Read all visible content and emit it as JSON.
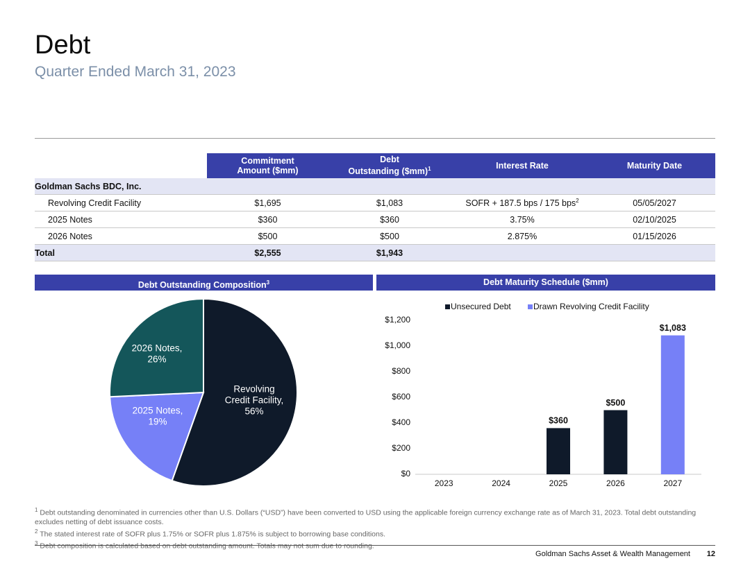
{
  "header": {
    "title": "Debt",
    "subtitle": "Quarter Ended March 31, 2023"
  },
  "table": {
    "columns": [
      {
        "line1": "Commitment",
        "line2": "Amount ($mm)",
        "sup": ""
      },
      {
        "line1": "Debt",
        "line2": "Outstanding ($mm)",
        "sup": "1"
      },
      {
        "line1": "Interest Rate",
        "line2": "",
        "sup": ""
      },
      {
        "line1": "Maturity Date",
        "line2": "",
        "sup": ""
      }
    ],
    "group_label": "Goldman Sachs BDC, Inc.",
    "rows": [
      {
        "name": "Revolving Credit Facility",
        "commitment": "$1,695",
        "outstanding": "$1,083",
        "rate": "SOFR + 187.5 bps / 175 bps",
        "rate_sup": "2",
        "maturity": "05/05/2027"
      },
      {
        "name": "2025 Notes",
        "commitment": "$360",
        "outstanding": "$360",
        "rate": "3.75%",
        "rate_sup": "",
        "maturity": "02/10/2025"
      },
      {
        "name": "2026 Notes",
        "commitment": "$500",
        "outstanding": "$500",
        "rate": "2.875%",
        "rate_sup": "",
        "maturity": "01/15/2026"
      }
    ],
    "total": {
      "name": "Total",
      "commitment": "$2,555",
      "outstanding": "$1,943"
    }
  },
  "panels": {
    "left_title": "Debt Outstanding Composition",
    "left_sup": "3",
    "right_title": "Debt Maturity Schedule ($mm)"
  },
  "colors": {
    "navy": "#0f1a2a",
    "periwinkle": "#7680f7",
    "teal": "#14565a",
    "header_blue": "#3840a8"
  },
  "chart_data": [
    {
      "type": "pie",
      "title": "Debt Outstanding Composition",
      "slices": [
        {
          "label_line1": "Revolving",
          "label_line2": "Credit Facility,",
          "label_line3": "56%",
          "value": 56,
          "color": "#0f1a2a"
        },
        {
          "label_line1": "2025 Notes,",
          "label_line2": "19%",
          "label_line3": "",
          "value": 19,
          "color": "#7680f7"
        },
        {
          "label_line1": "2026 Notes,",
          "label_line2": "26%",
          "label_line3": "",
          "value": 26,
          "color": "#14565a"
        }
      ]
    },
    {
      "type": "bar",
      "title": "Debt Maturity Schedule ($mm)",
      "categories": [
        "2023",
        "2024",
        "2025",
        "2026",
        "2027"
      ],
      "series": [
        {
          "name": "Unsecured Debt",
          "values": [
            0,
            0,
            360,
            500,
            0
          ],
          "color": "#0f1a2a"
        },
        {
          "name": "Drawn Revolving Credit Facility",
          "values": [
            0,
            0,
            0,
            0,
            1083
          ],
          "color": "#7680f7"
        }
      ],
      "data_labels": [
        "",
        "",
        "$360",
        "$500",
        "$1,083"
      ],
      "yticks": [
        "$0",
        "$200",
        "$400",
        "$600",
        "$800",
        "$1,000",
        "$1,200"
      ],
      "ylim": [
        0,
        1200
      ]
    }
  ],
  "footnotes": {
    "f1_mark": "1",
    "f1": "Debt outstanding denominated in currencies other than U.S. Dollars (“USD”) have been converted to USD using the applicable foreign currency exchange rate as of March 31, 2023. Total debt outstanding excludes netting of debt issuance costs.",
    "f2_mark": "2",
    "f2": "The stated interest rate of SOFR plus 1.75% or SOFR plus 1.875% is subject to borrowing base conditions.",
    "f3_mark": "3",
    "f3": "Debt composition is calculated based on debt outstanding amount. Totals may not sum due to rounding."
  },
  "footer": {
    "company": "Goldman Sachs Asset & Wealth Management",
    "page": "12"
  }
}
